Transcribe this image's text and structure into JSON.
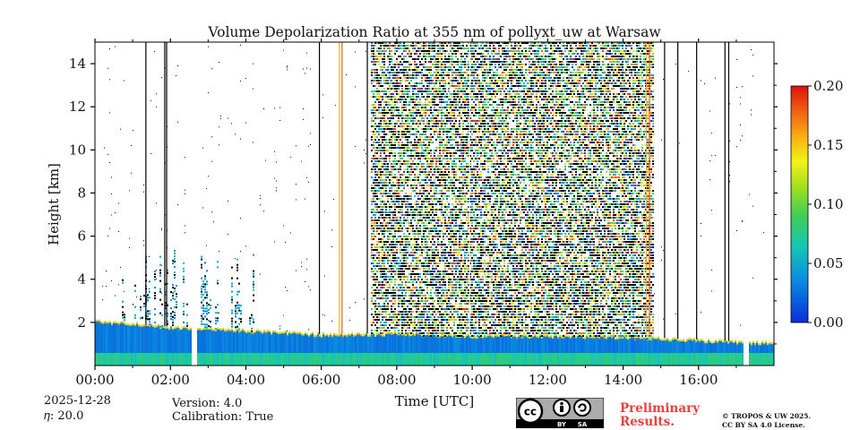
{
  "chart_data": {
    "type": "heatmap",
    "title": "Volume Depolarization Ratio at 355 nm of pollyxt_uw at Warsaw",
    "xlabel": "Time [UTC]",
    "ylabel": "Height [km]",
    "xlim_hours": [
      0,
      18
    ],
    "ylim_km": [
      0,
      15
    ],
    "x_ticks": [
      "00:00",
      "02:00",
      "04:00",
      "06:00",
      "08:00",
      "10:00",
      "12:00",
      "14:00",
      "16:00"
    ],
    "y_ticks": [
      "2",
      "4",
      "6",
      "8",
      "10",
      "12",
      "14"
    ],
    "y_tick_values": [
      2,
      4,
      6,
      8,
      10,
      12,
      14
    ],
    "colorbar": {
      "min": 0.0,
      "max": 0.2,
      "ticks": [
        "0.00",
        "0.05",
        "0.10",
        "0.15",
        "0.20"
      ],
      "tick_values": [
        0.0,
        0.05,
        0.1,
        0.15,
        0.2
      ]
    },
    "boundary_layer_top_km_approx": [
      {
        "time_h": 0.0,
        "height_km": 2.1
      },
      {
        "time_h": 2.0,
        "height_km": 1.8
      },
      {
        "time_h": 4.0,
        "height_km": 1.65
      },
      {
        "time_h": 6.0,
        "height_km": 1.45
      },
      {
        "time_h": 8.0,
        "height_km": 1.5
      },
      {
        "time_h": 10.0,
        "height_km": 1.4
      },
      {
        "time_h": 12.0,
        "height_km": 1.4
      },
      {
        "time_h": 14.0,
        "height_km": 1.35
      },
      {
        "time_h": 16.0,
        "height_km": 1.2
      },
      {
        "time_h": 18.0,
        "height_km": 1.05
      }
    ],
    "noisy_daytime_range_h": [
      7.3,
      14.8
    ],
    "data_gaps_h": [
      [
        2.55,
        2.7
      ],
      [
        17.15,
        17.3
      ]
    ]
  },
  "date": "2025-12-28",
  "eta_label": "𝜂: 20.0",
  "version_label": "Version: 4.0",
  "calibration_label": "Calibration: True",
  "preliminary_line1": "Preliminary",
  "preliminary_line2": "Results.",
  "copyright_line1": "© TROPOS & UW 2025.",
  "copyright_line2": "CC BY SA 4.0 License.",
  "license_badge": {
    "cc": "cc",
    "by": "BY",
    "sa": "SA"
  }
}
